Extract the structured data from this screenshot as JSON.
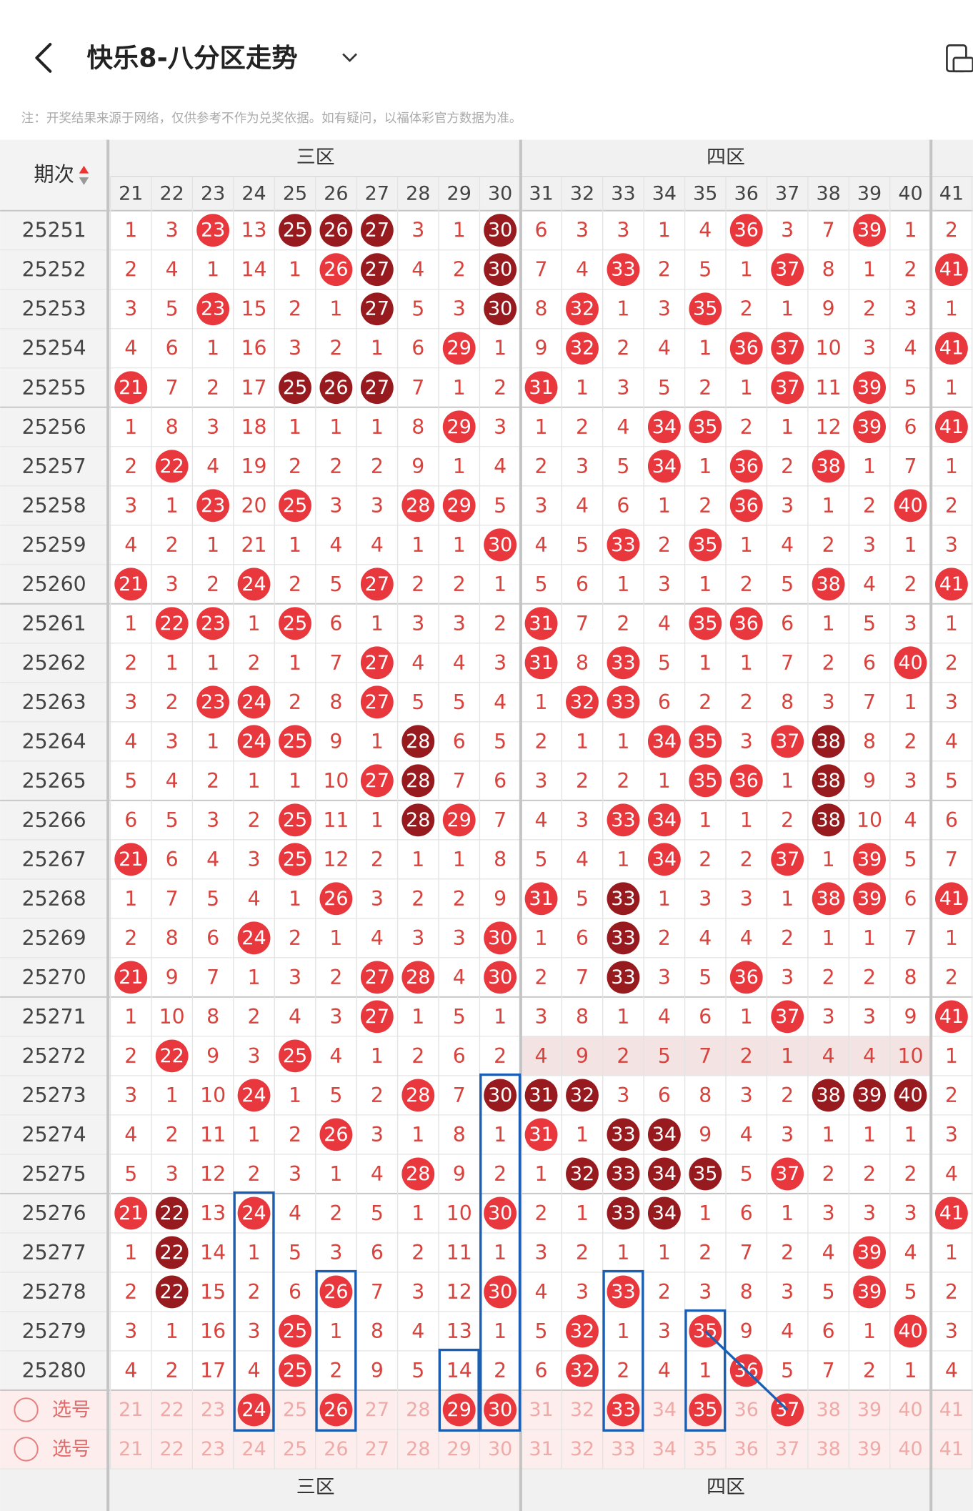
{
  "header": {
    "title": "快乐8-八分区走势"
  },
  "notice": "注：开奖结果来源于网络，仅供参考不作为兑奖依据。如有疑问，以福体彩官方数据为准。",
  "table": {
    "issue_label": "期次",
    "zones": [
      {
        "name": "三区"
      },
      {
        "name": "四区"
      }
    ],
    "columns": [
      21,
      22,
      23,
      24,
      25,
      26,
      27,
      28,
      29,
      30,
      31,
      32,
      33,
      34,
      35,
      36,
      37,
      38,
      39,
      40,
      41
    ],
    "rows": [
      {
        "issue": "25251",
        "cells": [
          1,
          3,
          23,
          13,
          25,
          26,
          27,
          3,
          1,
          30,
          6,
          3,
          3,
          1,
          4,
          36,
          3,
          7,
          39,
          1,
          2
        ]
      },
      {
        "issue": "25252",
        "cells": [
          2,
          4,
          1,
          14,
          1,
          26,
          27,
          4,
          2,
          30,
          7,
          4,
          33,
          2,
          5,
          1,
          37,
          8,
          1,
          2,
          41
        ]
      },
      {
        "issue": "25253",
        "cells": [
          3,
          5,
          23,
          15,
          2,
          1,
          27,
          5,
          3,
          30,
          8,
          32,
          1,
          3,
          35,
          2,
          1,
          9,
          2,
          3,
          1
        ]
      },
      {
        "issue": "25254",
        "cells": [
          4,
          6,
          1,
          16,
          3,
          2,
          1,
          6,
          29,
          1,
          9,
          32,
          2,
          4,
          1,
          36,
          37,
          10,
          3,
          4,
          41
        ]
      },
      {
        "issue": "25255",
        "cells": [
          21,
          7,
          2,
          17,
          25,
          26,
          27,
          7,
          1,
          2,
          31,
          1,
          3,
          5,
          2,
          1,
          37,
          11,
          39,
          5,
          1
        ]
      },
      {
        "issue": "25256",
        "cells": [
          1,
          8,
          3,
          18,
          1,
          1,
          1,
          8,
          29,
          3,
          1,
          2,
          4,
          34,
          35,
          2,
          1,
          12,
          39,
          6,
          41
        ]
      },
      {
        "issue": "25257",
        "cells": [
          2,
          22,
          4,
          19,
          2,
          2,
          2,
          9,
          1,
          4,
          2,
          3,
          5,
          34,
          1,
          36,
          2,
          38,
          1,
          7,
          1
        ]
      },
      {
        "issue": "25258",
        "cells": [
          3,
          1,
          23,
          20,
          25,
          3,
          3,
          28,
          29,
          5,
          3,
          4,
          6,
          1,
          2,
          36,
          3,
          1,
          2,
          40,
          2
        ]
      },
      {
        "issue": "25259",
        "cells": [
          4,
          2,
          1,
          21,
          1,
          4,
          4,
          1,
          1,
          30,
          4,
          5,
          33,
          2,
          35,
          1,
          4,
          2,
          3,
          1,
          3
        ]
      },
      {
        "issue": "25260",
        "cells": [
          21,
          3,
          2,
          24,
          2,
          5,
          27,
          2,
          2,
          1,
          5,
          6,
          1,
          3,
          1,
          2,
          5,
          38,
          4,
          2,
          41
        ]
      },
      {
        "issue": "25261",
        "cells": [
          1,
          22,
          23,
          1,
          25,
          6,
          1,
          3,
          3,
          2,
          31,
          7,
          2,
          4,
          35,
          36,
          6,
          1,
          5,
          3,
          1
        ]
      },
      {
        "issue": "25262",
        "cells": [
          2,
          1,
          1,
          2,
          1,
          7,
          27,
          4,
          4,
          3,
          31,
          8,
          33,
          5,
          1,
          1,
          7,
          2,
          6,
          40,
          2
        ]
      },
      {
        "issue": "25263",
        "cells": [
          3,
          2,
          23,
          24,
          2,
          8,
          27,
          5,
          5,
          4,
          1,
          32,
          33,
          6,
          2,
          2,
          8,
          3,
          7,
          1,
          3
        ]
      },
      {
        "issue": "25264",
        "cells": [
          4,
          3,
          1,
          24,
          25,
          9,
          1,
          28,
          6,
          5,
          2,
          1,
          1,
          34,
          35,
          3,
          37,
          38,
          8,
          2,
          4
        ]
      },
      {
        "issue": "25265",
        "cells": [
          5,
          4,
          2,
          1,
          1,
          10,
          27,
          28,
          7,
          6,
          3,
          2,
          2,
          1,
          35,
          36,
          1,
          38,
          9,
          3,
          5
        ]
      },
      {
        "issue": "25266",
        "cells": [
          6,
          5,
          3,
          2,
          25,
          11,
          1,
          28,
          29,
          7,
          4,
          3,
          33,
          34,
          1,
          1,
          2,
          38,
          10,
          4,
          6
        ]
      },
      {
        "issue": "25267",
        "cells": [
          21,
          6,
          4,
          3,
          25,
          12,
          2,
          1,
          1,
          8,
          5,
          4,
          1,
          34,
          2,
          2,
          37,
          1,
          39,
          5,
          7
        ]
      },
      {
        "issue": "25268",
        "cells": [
          1,
          7,
          5,
          4,
          1,
          26,
          3,
          2,
          2,
          9,
          31,
          5,
          33,
          1,
          3,
          3,
          1,
          38,
          39,
          6,
          41
        ]
      },
      {
        "issue": "25269",
        "cells": [
          2,
          8,
          6,
          24,
          2,
          1,
          4,
          3,
          3,
          30,
          1,
          6,
          33,
          2,
          4,
          4,
          2,
          1,
          1,
          7,
          1
        ]
      },
      {
        "issue": "25270",
        "cells": [
          21,
          9,
          7,
          1,
          3,
          2,
          27,
          28,
          4,
          30,
          2,
          7,
          33,
          3,
          5,
          36,
          3,
          2,
          2,
          8,
          2
        ]
      },
      {
        "issue": "25271",
        "cells": [
          1,
          10,
          8,
          2,
          4,
          3,
          27,
          1,
          5,
          1,
          3,
          8,
          1,
          4,
          6,
          1,
          37,
          3,
          3,
          9,
          41
        ]
      },
      {
        "issue": "25272",
        "cells": [
          2,
          22,
          9,
          3,
          25,
          4,
          1,
          2,
          6,
          2,
          4,
          9,
          2,
          5,
          7,
          2,
          1,
          4,
          4,
          10,
          1
        ]
      },
      {
        "issue": "25273",
        "cells": [
          3,
          1,
          10,
          24,
          1,
          5,
          2,
          28,
          7,
          30,
          31,
          32,
          3,
          6,
          8,
          3,
          2,
          38,
          39,
          40,
          2
        ]
      },
      {
        "issue": "25274",
        "cells": [
          4,
          2,
          11,
          1,
          2,
          26,
          3,
          1,
          8,
          1,
          31,
          1,
          33,
          34,
          9,
          4,
          3,
          1,
          1,
          1,
          3
        ]
      },
      {
        "issue": "25275",
        "cells": [
          5,
          3,
          12,
          2,
          3,
          1,
          4,
          28,
          9,
          2,
          1,
          32,
          33,
          34,
          35,
          5,
          37,
          2,
          2,
          2,
          4
        ]
      },
      {
        "issue": "25276",
        "cells": [
          21,
          22,
          13,
          24,
          4,
          2,
          5,
          1,
          10,
          30,
          2,
          1,
          33,
          34,
          1,
          6,
          1,
          3,
          3,
          3,
          41
        ]
      },
      {
        "issue": "25277",
        "cells": [
          1,
          22,
          14,
          1,
          5,
          3,
          6,
          2,
          11,
          1,
          3,
          2,
          1,
          1,
          2,
          7,
          2,
          4,
          39,
          4,
          1
        ]
      },
      {
        "issue": "25278",
        "cells": [
          2,
          22,
          15,
          2,
          6,
          26,
          7,
          3,
          12,
          30,
          4,
          3,
          33,
          2,
          3,
          8,
          3,
          5,
          39,
          5,
          2
        ]
      },
      {
        "issue": "25279",
        "cells": [
          3,
          1,
          16,
          3,
          25,
          1,
          8,
          4,
          13,
          1,
          5,
          32,
          1,
          3,
          35,
          9,
          4,
          6,
          1,
          40,
          3
        ]
      },
      {
        "issue": "25280",
        "cells": [
          4,
          2,
          17,
          4,
          25,
          2,
          9,
          5,
          14,
          2,
          6,
          32,
          2,
          4,
          1,
          36,
          5,
          7,
          2,
          1,
          4
        ]
      }
    ],
    "pick_label": "选号",
    "pick_rows": [
      {
        "numbers": [
          21,
          22,
          23,
          24,
          25,
          26,
          27,
          28,
          29,
          30,
          31,
          32,
          33,
          34,
          35,
          36,
          37,
          38,
          39,
          40,
          41
        ],
        "selected": [
          24,
          26,
          29,
          30,
          33,
          35,
          37
        ]
      },
      {
        "numbers": [
          21,
          22,
          23,
          24,
          25,
          26,
          27,
          28,
          29,
          30,
          31,
          32,
          33,
          34,
          35,
          36,
          37,
          38,
          39,
          40,
          41
        ]
      }
    ],
    "footer_issue": "-"
  }
}
